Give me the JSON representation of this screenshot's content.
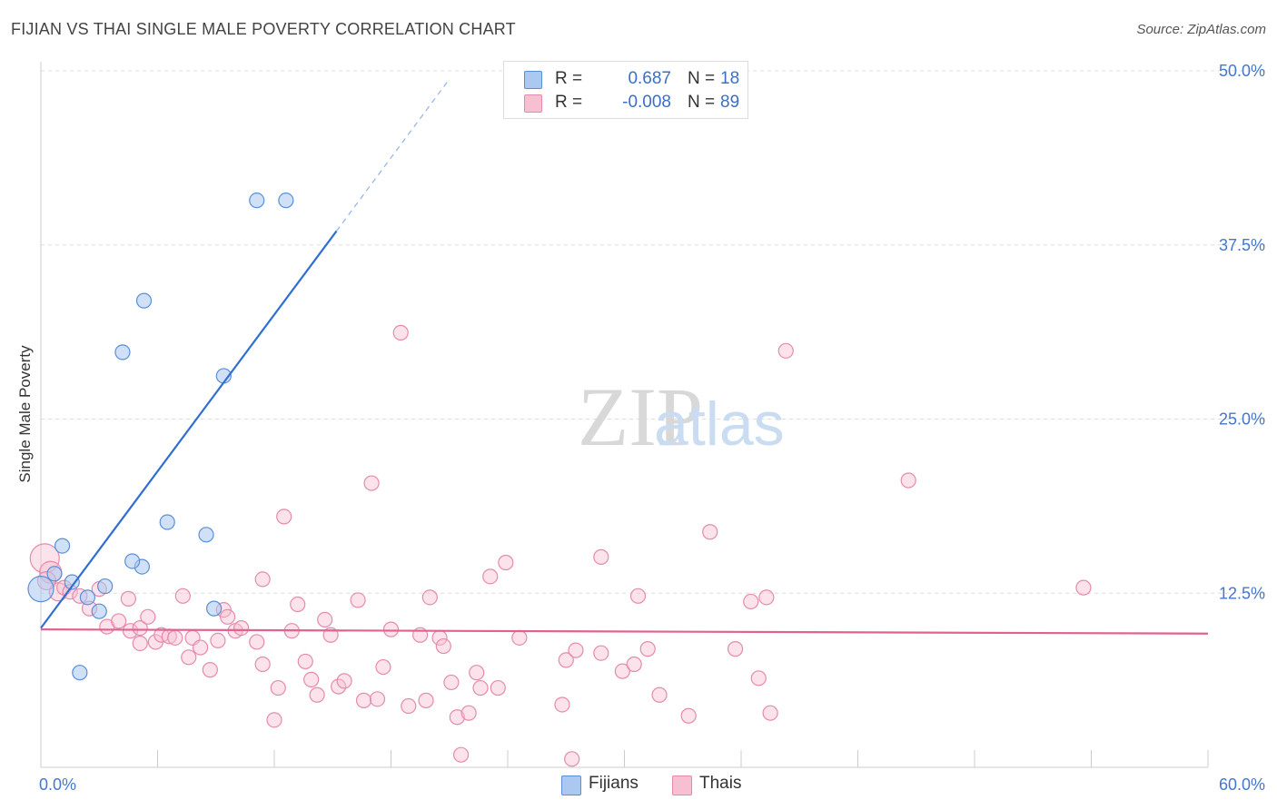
{
  "header": {
    "title": "FIJIAN VS THAI SINGLE MALE POVERTY CORRELATION CHART",
    "source": "Source: ZipAtlas.com"
  },
  "watermark": {
    "zip": "ZIP",
    "atlas": "atlas"
  },
  "legend": {
    "rows": [
      {
        "r_label": "R =",
        "r_value": "0.687",
        "n_label": "N =",
        "n_value": "18"
      },
      {
        "r_label": "R =",
        "r_value": "-0.008",
        "n_label": "N =",
        "n_value": "89"
      }
    ]
  },
  "bottom_legend": {
    "fijians": "Fijians",
    "thais": "Thais"
  },
  "colors": {
    "fijian_fill": "#aac8f0",
    "fijian_stroke": "#5a8fd6",
    "fijian_line": "#2f6fd0",
    "thai_fill": "#f7bfd2",
    "thai_stroke": "#e58aab",
    "thai_line": "#e0628f",
    "grid": "#dddddd",
    "axis_text": "#4477cc"
  },
  "chart_data": {
    "type": "scatter",
    "title": "FIJIAN VS THAI SINGLE MALE POVERTY CORRELATION CHART",
    "xlabel": "",
    "ylabel": "Single Male Poverty",
    "xlim": [
      0,
      60
    ],
    "ylim": [
      0,
      50
    ],
    "x_tick_labels": [
      "0.0%",
      "60.0%"
    ],
    "y_tick_labels": [
      "12.5%",
      "25.0%",
      "37.5%",
      "50.0%"
    ],
    "y_ticks": [
      12.5,
      25.0,
      37.5,
      50.0
    ],
    "grid": true,
    "legend_position": "top-center",
    "series": [
      {
        "name": "Fijians",
        "r": 0.687,
        "n": 18,
        "trend": {
          "x0": 0.0,
          "y0": 10.0,
          "x1": 15.2,
          "y1": 38.5,
          "dashed_to_x": 21.0,
          "dashed_to_y": 49.4
        },
        "points": [
          [
            0.0,
            12.8,
            14
          ],
          [
            1.1,
            15.9,
            8
          ],
          [
            0.7,
            13.9,
            8
          ],
          [
            1.6,
            13.3,
            8
          ],
          [
            2.4,
            12.2,
            8
          ],
          [
            3.0,
            11.2,
            8
          ],
          [
            3.3,
            13.0,
            8
          ],
          [
            2.0,
            6.8,
            8
          ],
          [
            4.2,
            29.8,
            8
          ],
          [
            5.2,
            14.4,
            8
          ],
          [
            4.7,
            14.8,
            8
          ],
          [
            5.3,
            33.5,
            8
          ],
          [
            6.5,
            17.6,
            8
          ],
          [
            8.5,
            16.7,
            8
          ],
          [
            9.4,
            28.1,
            8
          ],
          [
            8.9,
            11.4,
            8
          ],
          [
            11.1,
            40.7,
            8
          ],
          [
            12.6,
            40.7,
            8
          ]
        ]
      },
      {
        "name": "Thais",
        "r": -0.008,
        "n": 89,
        "trend": {
          "x0": 0.0,
          "y0": 9.9,
          "x1": 60.0,
          "y1": 9.6
        },
        "points": [
          [
            0.2,
            15.0,
            16
          ],
          [
            0.5,
            14.0,
            12
          ],
          [
            0.9,
            12.6,
            10
          ],
          [
            1.2,
            12.9,
            8
          ],
          [
            1.5,
            12.6,
            8
          ],
          [
            2.0,
            12.3,
            8
          ],
          [
            2.5,
            11.4,
            8
          ],
          [
            3.0,
            12.8,
            8
          ],
          [
            3.4,
            10.1,
            8
          ],
          [
            4.0,
            10.5,
            8
          ],
          [
            4.5,
            12.1,
            8
          ],
          [
            4.6,
            9.8,
            8
          ],
          [
            5.1,
            10.0,
            8
          ],
          [
            5.1,
            8.9,
            8
          ],
          [
            5.5,
            10.8,
            8
          ],
          [
            5.9,
            9.0,
            8
          ],
          [
            6.2,
            9.5,
            8
          ],
          [
            6.6,
            9.4,
            8
          ],
          [
            6.9,
            9.3,
            8
          ],
          [
            7.3,
            12.3,
            8
          ],
          [
            7.6,
            7.9,
            8
          ],
          [
            7.8,
            9.3,
            8
          ],
          [
            8.2,
            8.6,
            8
          ],
          [
            8.7,
            7.0,
            8
          ],
          [
            9.1,
            9.1,
            8
          ],
          [
            9.4,
            11.3,
            8
          ],
          [
            9.6,
            10.8,
            8
          ],
          [
            10.0,
            9.8,
            8
          ],
          [
            10.3,
            10.0,
            8
          ],
          [
            11.1,
            9.0,
            8
          ],
          [
            11.4,
            13.5,
            8
          ],
          [
            11.4,
            7.4,
            8
          ],
          [
            12.2,
            5.7,
            8
          ],
          [
            12.0,
            3.4,
            8
          ],
          [
            12.5,
            18.0,
            8
          ],
          [
            12.9,
            9.8,
            8
          ],
          [
            13.2,
            11.7,
            8
          ],
          [
            13.6,
            7.6,
            8
          ],
          [
            13.9,
            6.3,
            8
          ],
          [
            14.2,
            5.2,
            8
          ],
          [
            14.6,
            10.6,
            8
          ],
          [
            14.9,
            9.5,
            8
          ],
          [
            15.3,
            5.8,
            8
          ],
          [
            15.6,
            6.2,
            8
          ],
          [
            16.3,
            12.0,
            8
          ],
          [
            16.6,
            4.8,
            8
          ],
          [
            17.0,
            20.4,
            8
          ],
          [
            17.3,
            4.9,
            8
          ],
          [
            17.6,
            7.2,
            8
          ],
          [
            18.0,
            9.9,
            8
          ],
          [
            18.5,
            31.2,
            8
          ],
          [
            18.9,
            4.4,
            8
          ],
          [
            19.5,
            9.5,
            8
          ],
          [
            19.8,
            4.8,
            8
          ],
          [
            20.0,
            12.2,
            8
          ],
          [
            20.5,
            9.3,
            8
          ],
          [
            20.7,
            8.7,
            8
          ],
          [
            21.1,
            6.1,
            8
          ],
          [
            21.4,
            3.6,
            8
          ],
          [
            21.6,
            0.9,
            8
          ],
          [
            22.0,
            3.9,
            8
          ],
          [
            22.4,
            6.8,
            8
          ],
          [
            22.6,
            5.7,
            8
          ],
          [
            23.1,
            13.7,
            8
          ],
          [
            23.5,
            5.7,
            8
          ],
          [
            23.9,
            14.7,
            8
          ],
          [
            24.6,
            9.3,
            8
          ],
          [
            26.8,
            4.5,
            8
          ],
          [
            27.0,
            7.7,
            8
          ],
          [
            27.3,
            0.6,
            8
          ],
          [
            27.5,
            8.4,
            8
          ],
          [
            28.8,
            15.1,
            8
          ],
          [
            28.8,
            8.2,
            8
          ],
          [
            29.9,
            6.9,
            8
          ],
          [
            30.5,
            7.4,
            8
          ],
          [
            30.7,
            12.3,
            8
          ],
          [
            31.2,
            8.5,
            8
          ],
          [
            31.8,
            5.2,
            8
          ],
          [
            33.3,
            3.7,
            8
          ],
          [
            34.4,
            16.9,
            8
          ],
          [
            35.7,
            8.5,
            8
          ],
          [
            36.5,
            11.9,
            8
          ],
          [
            36.9,
            6.4,
            8
          ],
          [
            37.3,
            12.2,
            8
          ],
          [
            37.5,
            3.9,
            8
          ],
          [
            38.3,
            29.9,
            8
          ],
          [
            44.6,
            20.6,
            8
          ],
          [
            53.6,
            12.9,
            8
          ],
          [
            0.3,
            13.4,
            10
          ]
        ]
      }
    ]
  }
}
